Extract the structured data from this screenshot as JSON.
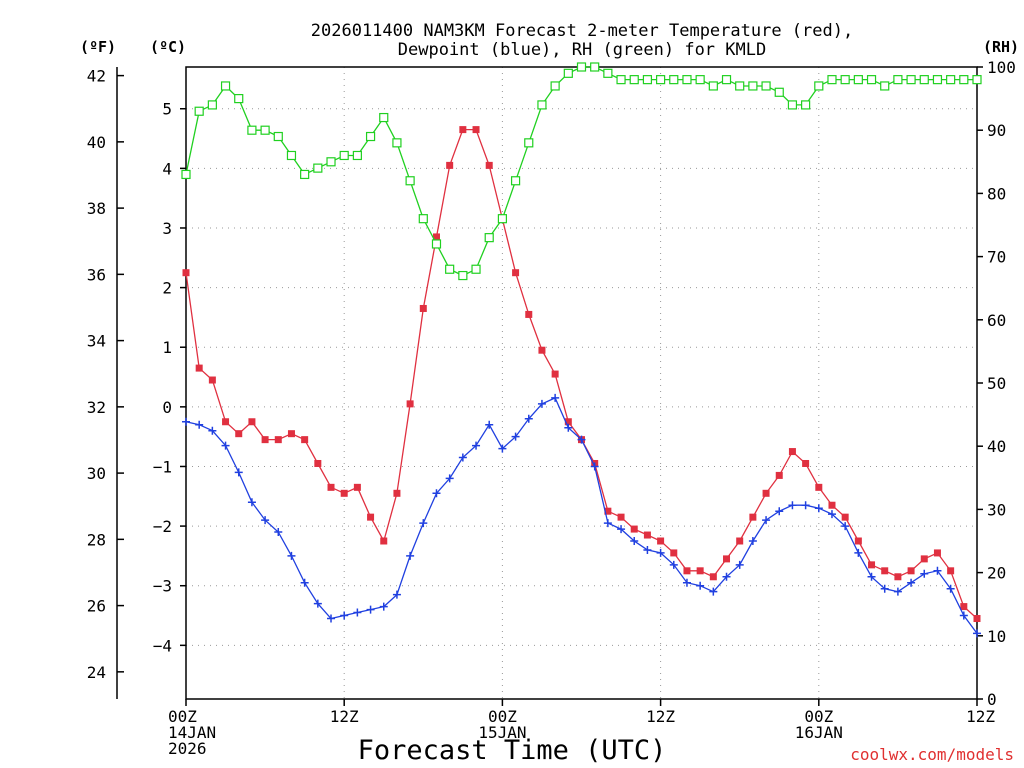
{
  "chart_data": {
    "type": "line",
    "title": [
      "2026011400 NAM3KM Forecast 2-meter Temperature (red),",
      "Dewpoint (blue), RH (green) for KMLD"
    ],
    "xlabel": "Forecast Time (UTC)",
    "units": {
      "fahrenheit": "(ºF)",
      "celsius": "(ºC)",
      "rh": "(RH)"
    },
    "credit": "coolwx.com/models",
    "x_hours": [
      0,
      1,
      2,
      3,
      4,
      5,
      6,
      7,
      8,
      9,
      10,
      11,
      12,
      13,
      14,
      15,
      16,
      17,
      18,
      19,
      20,
      21,
      22,
      23,
      24,
      25,
      26,
      27,
      28,
      29,
      30,
      31,
      32,
      33,
      34,
      35,
      36,
      37,
      38,
      39,
      40,
      41,
      42,
      43,
      44,
      45,
      46,
      47,
      48,
      49,
      50,
      51,
      52,
      53,
      54,
      55,
      56,
      57,
      58,
      59,
      60
    ],
    "x_range": [
      0,
      60
    ],
    "x_ticks": [
      {
        "hour": 0,
        "lines": [
          "00Z",
          "14JAN",
          "2026"
        ]
      },
      {
        "hour": 12,
        "lines": [
          "12Z"
        ]
      },
      {
        "hour": 24,
        "lines": [
          "00Z",
          "15JAN"
        ]
      },
      {
        "hour": 36,
        "lines": [
          "12Z"
        ]
      },
      {
        "hour": 48,
        "lines": [
          "00Z",
          "16JAN"
        ]
      },
      {
        "hour": 60,
        "lines": [
          "12Z"
        ]
      }
    ],
    "celsius_axis": {
      "range": [
        -4.9,
        5.7
      ],
      "ticks": [
        5,
        4,
        3,
        2,
        1,
        0,
        -1,
        -2,
        -3,
        -4
      ],
      "tick_labels": [
        "5",
        "4",
        "3",
        "2",
        "1",
        "0",
        "−1",
        "−2",
        "−3",
        "−4"
      ]
    },
    "fahrenheit_axis": {
      "ticks": [
        42,
        40,
        38,
        36,
        34,
        32,
        30,
        28,
        26,
        24
      ],
      "tick_labels": [
        "42",
        "40",
        "38",
        "36",
        "34",
        "32",
        "30",
        "28",
        "26",
        "24"
      ]
    },
    "rh_axis": {
      "range": [
        0,
        100
      ],
      "ticks": [
        100,
        90,
        80,
        70,
        60,
        50,
        40,
        30,
        20,
        10,
        0
      ],
      "tick_labels": [
        "100",
        "90",
        "80",
        "70",
        "60",
        "50",
        "40",
        "30",
        "20",
        "10",
        "0"
      ]
    },
    "series": [
      {
        "name": "Temperature",
        "units": "°C",
        "axis": "celsius",
        "color": "#e03040",
        "marker": "filled-square",
        "values": [
          2.25,
          0.65,
          0.45,
          -0.25,
          -0.45,
          -0.25,
          -0.55,
          -0.55,
          -0.45,
          -0.55,
          -0.95,
          -1.35,
          -1.45,
          -1.35,
          -1.85,
          -2.25,
          -1.45,
          0.05,
          1.65,
          2.85,
          4.05,
          4.65,
          4.65,
          4.05,
          3.15,
          2.25,
          1.55,
          0.95,
          0.55,
          -0.25,
          -0.55,
          -0.95,
          -1.75,
          -1.85,
          -2.05,
          -2.15,
          -2.25,
          -2.45,
          -2.75,
          -2.75,
          -2.85,
          -2.55,
          -2.25,
          -1.85,
          -1.45,
          -1.15,
          -0.75,
          -0.95,
          -1.35,
          -1.65,
          -1.85,
          -2.25,
          -2.65,
          -2.75,
          -2.85,
          -2.75,
          -2.55,
          -2.45,
          -2.75,
          -3.35,
          -3.55
        ]
      },
      {
        "name": "Dewpoint",
        "units": "°C",
        "axis": "celsius",
        "color": "#2040e0",
        "marker": "plus",
        "values": [
          -0.25,
          -0.3,
          -0.4,
          -0.65,
          -1.1,
          -1.6,
          -1.9,
          -2.1,
          -2.5,
          -2.95,
          -3.3,
          -3.55,
          -3.5,
          -3.45,
          -3.4,
          -3.35,
          -3.15,
          -2.5,
          -1.95,
          -1.45,
          -1.2,
          -0.85,
          -0.65,
          -0.3,
          -0.7,
          -0.5,
          -0.2,
          0.05,
          0.15,
          -0.35,
          -0.55,
          -1.0,
          -1.95,
          -2.05,
          -2.25,
          -2.4,
          -2.45,
          -2.65,
          -2.95,
          -3.0,
          -3.1,
          -2.85,
          -2.65,
          -2.25,
          -1.9,
          -1.75,
          -1.65,
          -1.65,
          -1.7,
          -1.8,
          -2.0,
          -2.45,
          -2.85,
          -3.05,
          -3.1,
          -2.95,
          -2.8,
          -2.75,
          -3.05,
          -3.5,
          -3.8
        ]
      },
      {
        "name": "RH",
        "units": "%",
        "axis": "rh",
        "color": "#20d020",
        "marker": "open-square",
        "values": [
          83,
          93,
          94,
          97,
          95,
          90,
          90,
          89,
          86,
          83,
          84,
          85,
          86,
          86,
          89,
          92,
          88,
          82,
          76,
          72,
          68,
          67,
          68,
          73,
          76,
          82,
          88,
          94,
          97,
          99,
          100,
          100,
          99,
          98,
          98,
          98,
          98,
          98,
          98,
          98,
          97,
          98,
          97,
          97,
          97,
          96,
          94,
          94,
          97,
          98,
          98,
          98,
          98,
          97,
          98,
          98,
          98,
          98,
          98,
          98,
          98
        ]
      }
    ]
  }
}
